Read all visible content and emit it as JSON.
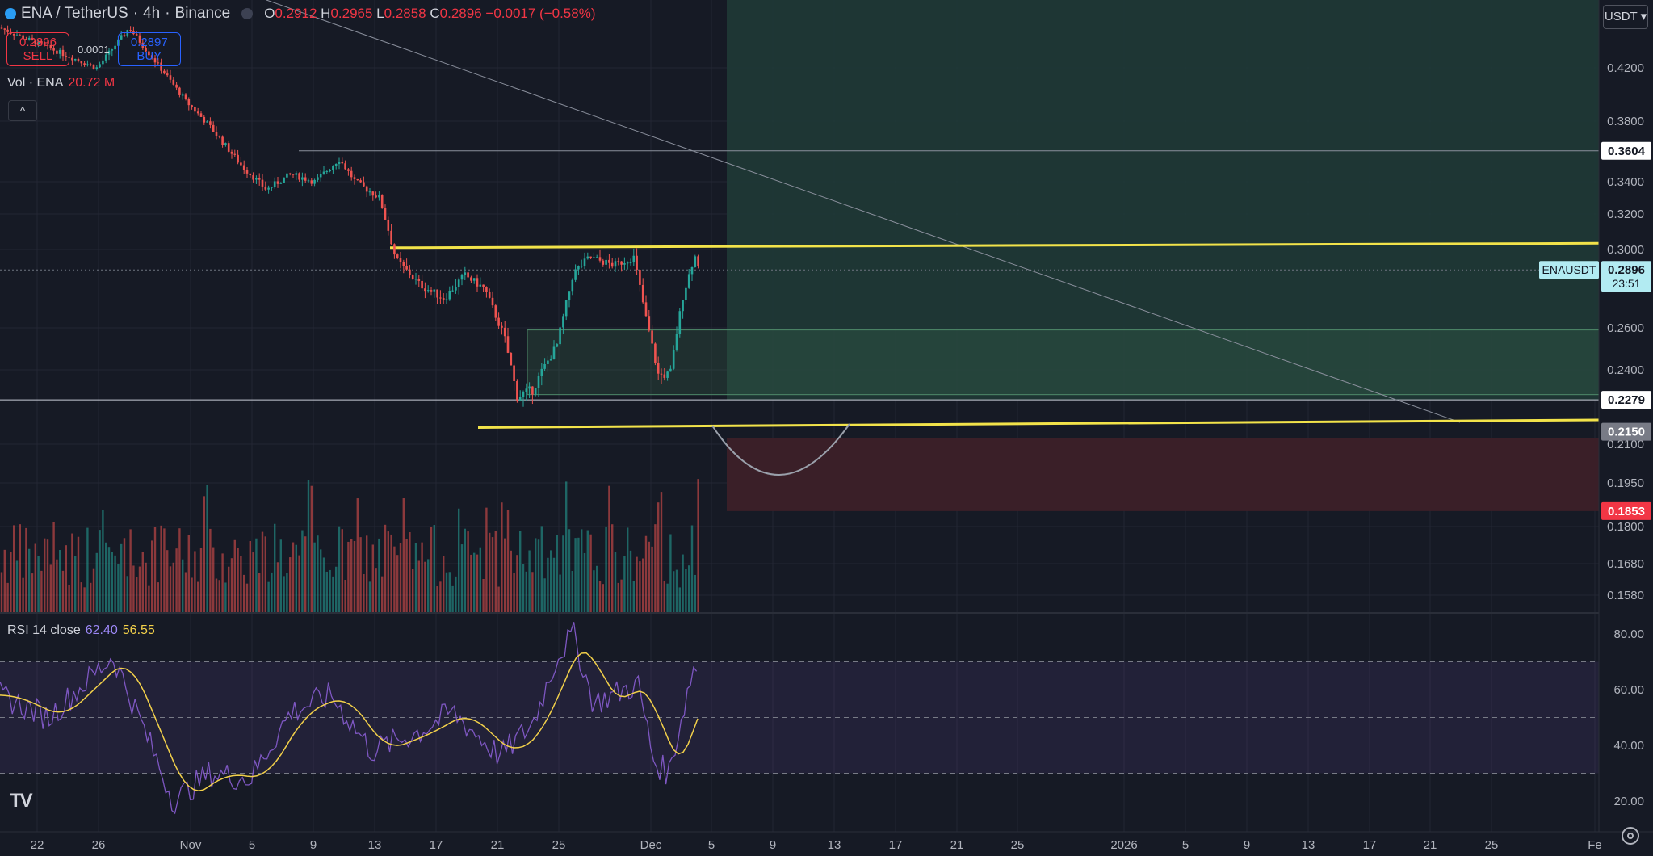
{
  "symbol": {
    "pair": "ENA / TetherUS",
    "interval": "4h",
    "exchange": "Binance",
    "ohlc": {
      "o_label": "O",
      "o": "0.2912",
      "h_label": "H",
      "h": "0.2965",
      "l_label": "L",
      "l": "0.2858",
      "c_label": "C",
      "c": "0.2896",
      "change": "−0.0017 (−0.58%)"
    }
  },
  "trade": {
    "sell_price": "0.2896",
    "sell_label": "SELL",
    "spread": "0.0001",
    "buy_price": "0.2897",
    "buy_label": "BUY"
  },
  "volume_legend": {
    "label": "Vol · ENA",
    "value": "20.72 M"
  },
  "rsi_legend": {
    "label": "RSI 14 close",
    "rsi": "62.40",
    "ma": "56.55"
  },
  "currency_selector": "USDT",
  "collapse_glyph": "^",
  "logo": "TV",
  "colors": {
    "background": "#161a25",
    "grid": "#232634",
    "up": "#26a69a",
    "down": "#ef5350",
    "trend_yellow": "#f2e34a",
    "rsi_line": "#7e57c2",
    "rsi_ma": "#f2d04a",
    "target_zone": "#1f3a36",
    "stop_zone": "#3a1f28"
  },
  "chart_data": {
    "type": "candlestick",
    "price_axis_labels": [
      "0.4200",
      "0.3800",
      "0.3400",
      "0.3200",
      "0.3000",
      "0.2600",
      "0.2400",
      "0.2100",
      "0.1950",
      "0.1800",
      "0.1680",
      "0.1580"
    ],
    "price_badges": [
      {
        "value": "0.3604",
        "style": "white"
      },
      {
        "value": "0.2279",
        "style": "white"
      },
      {
        "value": "0.2150",
        "style": "grey"
      },
      {
        "value": "0.1853",
        "style": "red"
      }
    ],
    "current_price": {
      "symbol": "ENAUSDT",
      "value": "0.2896",
      "countdown": "23:51"
    },
    "rsi_axis_labels": [
      "80.00",
      "60.00",
      "40.00",
      "20.00"
    ],
    "rsi_bands": {
      "upper": 70,
      "middle": 50,
      "lower": 30
    },
    "time_axis_labels": [
      "22",
      "26",
      "Nov",
      "5",
      "9",
      "13",
      "17",
      "21",
      "25",
      "Dec",
      "5",
      "9",
      "13",
      "17",
      "21",
      "25",
      "2026",
      "5",
      "9",
      "13",
      "17",
      "21",
      "25",
      "Fe"
    ],
    "drawings": {
      "position_entry": 0.2279,
      "target": 0.3604,
      "stop": 0.1853,
      "support_line": 0.215,
      "upper_channel": [
        0.301,
        0.3035
      ],
      "lower_channel": [
        0.2167,
        0.2198
      ],
      "consolidation_box": {
        "top": 0.259,
        "bottom": 0.23
      },
      "prior_high": 0.3604
    }
  }
}
